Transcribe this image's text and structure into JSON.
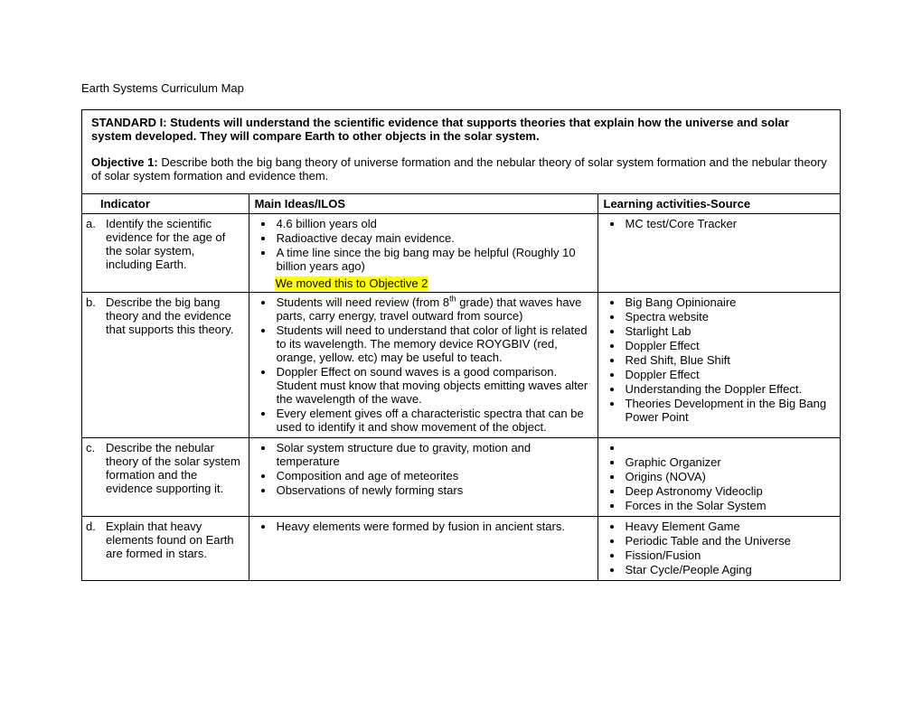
{
  "doc_title": "Earth Systems Curriculum Map",
  "standard": "STANDARD I:  Students will understand the scientific evidence that supports theories that explain how the universe and solar system developed.  They will compare Earth to other objects in the solar system.",
  "objective_label": "Objective 1:",
  "objective_text": "  Describe both the big bang theory of universe formation and the nebular theory of solar system formation and the nebular theory of solar system formation and evidence them.",
  "headers": {
    "indicator": "Indicator",
    "ideas": "Main Ideas/ILOS",
    "activities": "Learning activities-Source"
  },
  "rows": {
    "a": {
      "letter": "a.",
      "indicator": "Identify the scientific evidence for the age of the solar system, including Earth.",
      "ideas": [
        "4.6 billion years old",
        "Radioactive decay main evidence.",
        "A time line since the big bang may be helpful (Roughly 10 billion years ago)"
      ],
      "highlight": "We moved this to Objective 2",
      "activities": [
        "MC test/Core Tracker"
      ]
    },
    "b": {
      "letter": "b.",
      "indicator": "Describe the big bang theory and the evidence that supports this theory.",
      "ideas_pre": "Students will need review (from 8",
      "ideas_sup": "th",
      "ideas_post": " grade) that waves have parts, carry energy, travel outward from source)",
      "ideas_rest": [
        "Students will need to understand that color of light is related to its wavelength.  The memory device ROYGBIV (red, orange, yellow. etc) may be useful to teach.",
        "Doppler Effect on sound waves is a good comparison. Student must know that moving objects emitting waves alter the wavelength of the wave.",
        "Every element gives off a characteristic spectra that can be used to identify it and show movement of the object."
      ],
      "activities": [
        "Big Bang Opinionaire",
        "Spectra website",
        "Starlight Lab",
        "Doppler Effect",
        "Red Shift, Blue Shift",
        "Doppler Effect",
        "Understanding the Doppler Effect.",
        "Theories Development in the Big Bang Power Point"
      ]
    },
    "c": {
      "letter": "c.",
      "indicator": "Describe the nebular theory of the solar system formation and the evidence supporting it.",
      "ideas": [
        "Solar system structure due to gravity, motion and temperature",
        "Composition and age of meteorites",
        "Observations of newly forming stars"
      ],
      "activities": [
        "",
        "Graphic Organizer",
        "Origins (NOVA)",
        "Deep Astronomy Videoclip",
        "Forces in the Solar System"
      ]
    },
    "d": {
      "letter": "d.",
      "indicator": "Explain that heavy elements found on Earth are formed in stars.",
      "ideas": [
        "Heavy elements were formed by fusion in ancient stars."
      ],
      "activities": [
        "Heavy Element Game",
        "Periodic Table and the Universe",
        "Fission/Fusion",
        "Star Cycle/People Aging"
      ]
    }
  }
}
